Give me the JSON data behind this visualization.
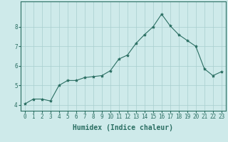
{
  "x": [
    0,
    1,
    2,
    3,
    4,
    5,
    6,
    7,
    8,
    9,
    10,
    11,
    12,
    13,
    14,
    15,
    16,
    17,
    18,
    19,
    20,
    21,
    22,
    23
  ],
  "y": [
    4.05,
    4.3,
    4.3,
    4.2,
    5.0,
    5.25,
    5.25,
    5.4,
    5.45,
    5.5,
    5.75,
    6.35,
    6.55,
    7.15,
    7.6,
    8.0,
    8.65,
    8.05,
    7.6,
    7.3,
    7.0,
    5.85,
    5.5,
    5.7
  ],
  "line_color": "#2a6e62",
  "marker": "*",
  "marker_size": 3,
  "bg_color": "#ceeaea",
  "grid_color": "#a8cece",
  "xlabel": "Humidex (Indice chaleur)",
  "xlim": [
    -0.5,
    23.5
  ],
  "ylim": [
    3.7,
    9.3
  ],
  "yticks": [
    4,
    5,
    6,
    7,
    8
  ],
  "xticks": [
    0,
    1,
    2,
    3,
    4,
    5,
    6,
    7,
    8,
    9,
    10,
    11,
    12,
    13,
    14,
    15,
    16,
    17,
    18,
    19,
    20,
    21,
    22,
    23
  ],
  "tick_color": "#2a6e62",
  "xlabel_fontsize": 7,
  "tick_fontsize": 5.5
}
